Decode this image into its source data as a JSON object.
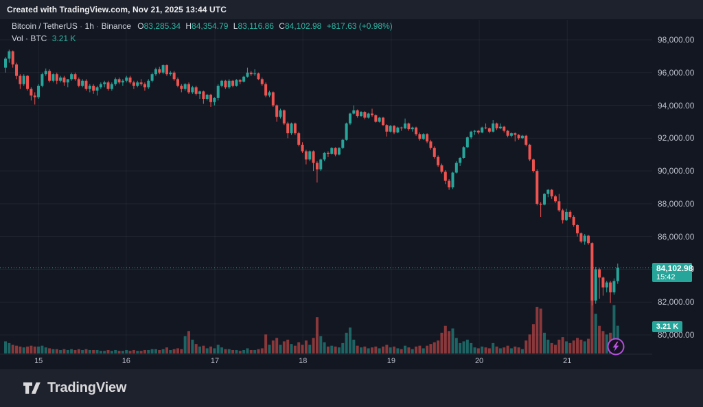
{
  "attribution_bar": {
    "text": "Created with TradingView.com, Nov 21, 2025 13:44 UTC"
  },
  "header": {
    "symbol": "Bitcoin / TetherUS",
    "sep1": "·",
    "interval": "1h",
    "sep2": "·",
    "exchange": "Binance",
    "o_prefix": "O",
    "o_value": "83,285.34",
    "h_prefix": "H",
    "h_value": "84,354.79",
    "l_prefix": "L",
    "l_value": "83,116.86",
    "c_prefix": "C",
    "c_value": "84,102.98",
    "change": "+817.63 (+0.98%)",
    "volume_label": "Vol · BTC",
    "volume_value": "3.21 K"
  },
  "price_label": {
    "price": "84,102.98",
    "countdown": "15:42"
  },
  "volume_badge": {
    "value": "3.21 K"
  },
  "footer": {
    "brand": "TradingView"
  },
  "colors": {
    "background": "#131722",
    "panel": "#1e222d",
    "up": "#26a69a",
    "down": "#ef5350",
    "grid": "rgba(255,255,255,0.055)",
    "axis_text": "#b9bdc9",
    "price_line": "#26a69a",
    "bolt_ring": "#b04fd8",
    "bolt_top": "#e649dd",
    "bolt_bottom": "#8b5cf6"
  },
  "chart_data": {
    "type": "candlestick+volume",
    "title": "Bitcoin / TetherUS · 1h · Binance",
    "price_axis": {
      "ticks": [
        {
          "label": "98,000.00",
          "value": 98000
        },
        {
          "label": "96,000.00",
          "value": 96000
        },
        {
          "label": "94,000.00",
          "value": 94000
        },
        {
          "label": "92,000.00",
          "value": 92000
        },
        {
          "label": "90,000.00",
          "value": 90000
        },
        {
          "label": "88,000.00",
          "value": 88000
        },
        {
          "label": "86,000.00",
          "value": 86000
        },
        {
          "label": "84,000.00",
          "value": 84000
        },
        {
          "label": "82,000.00",
          "value": 82000
        },
        {
          "label": "80,000.00",
          "value": 80000
        }
      ],
      "range": [
        80000,
        98000
      ]
    },
    "time_axis": {
      "ticks": [
        {
          "label": "15",
          "i": 9.4
        },
        {
          "label": "16",
          "i": 33.3
        },
        {
          "label": "17",
          "i": 57.5
        },
        {
          "label": "18",
          "i": 81.5
        },
        {
          "label": "19",
          "i": 105.6
        },
        {
          "label": "20",
          "i": 129.6
        },
        {
          "label": "21",
          "i": 153.6
        }
      ]
    },
    "current_price": 84102.98,
    "last_volume_k": 3.21,
    "units": "price values in thousands of USDT, volume in thousands of BTC",
    "candles_format": [
      "open",
      "high",
      "low",
      "close",
      "volume_k"
    ],
    "candles": [
      [
        96.3,
        96.95,
        96.0,
        96.85,
        1.4
      ],
      [
        96.85,
        97.4,
        96.6,
        97.3,
        1.2
      ],
      [
        97.3,
        97.35,
        96.3,
        96.5,
        1.0
      ],
      [
        96.5,
        96.6,
        95.6,
        95.8,
        0.9
      ],
      [
        95.8,
        95.9,
        95.0,
        95.3,
        0.8
      ],
      [
        95.3,
        95.9,
        95.2,
        95.8,
        0.7
      ],
      [
        95.8,
        95.85,
        94.9,
        95.0,
        0.8
      ],
      [
        95.0,
        95.1,
        94.3,
        94.6,
        0.9
      ],
      [
        94.6,
        94.8,
        94.05,
        94.5,
        0.8
      ],
      [
        94.5,
        95.3,
        94.4,
        95.2,
        0.8
      ],
      [
        95.2,
        96.0,
        95.1,
        95.9,
        0.9
      ],
      [
        95.9,
        96.25,
        95.8,
        96.1,
        0.7
      ],
      [
        96.1,
        96.2,
        95.4,
        95.5,
        0.6
      ],
      [
        95.5,
        95.95,
        95.4,
        95.9,
        0.5
      ],
      [
        95.9,
        96.0,
        95.3,
        95.5,
        0.5
      ],
      [
        95.5,
        95.8,
        95.4,
        95.7,
        0.4
      ],
      [
        95.7,
        95.8,
        95.2,
        95.4,
        0.5
      ],
      [
        95.4,
        95.6,
        95.1,
        95.6,
        0.4
      ],
      [
        95.6,
        96.0,
        95.5,
        95.9,
        0.5
      ],
      [
        95.9,
        96.0,
        95.5,
        95.6,
        0.4
      ],
      [
        95.6,
        95.7,
        95.1,
        95.2,
        0.5
      ],
      [
        95.2,
        95.6,
        95.1,
        95.5,
        0.4
      ],
      [
        95.5,
        95.6,
        94.9,
        95.0,
        0.5
      ],
      [
        95.0,
        95.3,
        94.8,
        95.2,
        0.4
      ],
      [
        95.2,
        95.3,
        94.7,
        94.9,
        0.4
      ],
      [
        94.9,
        95.2,
        94.6,
        95.1,
        0.4
      ],
      [
        95.1,
        95.4,
        95.0,
        95.3,
        0.3
      ],
      [
        95.3,
        95.5,
        95.1,
        95.4,
        0.3
      ],
      [
        95.4,
        95.5,
        94.9,
        95.0,
        0.4
      ],
      [
        95.0,
        95.4,
        94.9,
        95.3,
        0.3
      ],
      [
        95.3,
        95.7,
        95.2,
        95.6,
        0.4
      ],
      [
        95.6,
        95.7,
        95.3,
        95.4,
        0.3
      ],
      [
        95.4,
        95.6,
        95.2,
        95.5,
        0.3
      ],
      [
        95.5,
        95.8,
        95.4,
        95.7,
        0.4
      ],
      [
        95.7,
        95.8,
        95.3,
        95.4,
        0.3
      ],
      [
        95.4,
        95.5,
        95.0,
        95.2,
        0.4
      ],
      [
        95.2,
        95.5,
        95.1,
        95.4,
        0.3
      ],
      [
        95.4,
        95.6,
        95.2,
        95.3,
        0.3
      ],
      [
        95.3,
        95.4,
        94.9,
        95.1,
        0.4
      ],
      [
        95.1,
        95.6,
        95.0,
        95.5,
        0.4
      ],
      [
        95.5,
        96.0,
        95.4,
        95.9,
        0.5
      ],
      [
        95.9,
        96.3,
        95.8,
        96.2,
        0.5
      ],
      [
        96.2,
        96.35,
        95.9,
        96.0,
        0.4
      ],
      [
        96.0,
        96.5,
        95.9,
        96.45,
        0.5
      ],
      [
        96.45,
        96.5,
        95.8,
        95.9,
        0.7
      ],
      [
        95.9,
        96.1,
        95.8,
        96.0,
        0.4
      ],
      [
        96.0,
        96.1,
        95.5,
        95.6,
        0.5
      ],
      [
        95.6,
        95.7,
        95.1,
        95.2,
        0.6
      ],
      [
        95.2,
        95.3,
        94.8,
        95.0,
        0.5
      ],
      [
        95.0,
        95.35,
        94.9,
        95.3,
        2.0
      ],
      [
        95.3,
        95.4,
        94.7,
        94.8,
        2.6
      ],
      [
        94.8,
        95.2,
        94.7,
        95.1,
        1.6
      ],
      [
        95.1,
        95.2,
        94.6,
        94.7,
        1.1
      ],
      [
        94.7,
        94.9,
        94.4,
        94.85,
        0.8
      ],
      [
        94.85,
        94.9,
        94.1,
        94.4,
        0.9
      ],
      [
        94.4,
        94.7,
        94.3,
        94.65,
        0.6
      ],
      [
        94.65,
        94.7,
        93.9,
        94.2,
        0.8
      ],
      [
        94.2,
        94.5,
        94.0,
        94.45,
        0.6
      ],
      [
        94.45,
        95.3,
        94.3,
        95.2,
        1.0
      ],
      [
        95.2,
        95.55,
        95.1,
        95.5,
        0.7
      ],
      [
        95.5,
        95.55,
        95.0,
        95.1,
        0.5
      ],
      [
        95.1,
        95.6,
        95.0,
        95.5,
        0.5
      ],
      [
        95.5,
        95.55,
        95.1,
        95.2,
        0.4
      ],
      [
        95.2,
        95.6,
        95.15,
        95.55,
        0.4
      ],
      [
        95.55,
        95.6,
        95.3,
        95.45,
        0.3
      ],
      [
        95.45,
        95.8,
        95.4,
        95.75,
        0.4
      ],
      [
        95.75,
        96.3,
        95.7,
        96.0,
        0.6
      ],
      [
        96.0,
        96.1,
        95.8,
        95.9,
        0.4
      ],
      [
        95.9,
        96.2,
        95.8,
        95.95,
        0.4
      ],
      [
        95.95,
        96.0,
        95.55,
        95.6,
        0.5
      ],
      [
        95.6,
        95.7,
        95.2,
        95.3,
        0.6
      ],
      [
        95.3,
        95.4,
        94.5,
        94.6,
        2.2
      ],
      [
        94.6,
        94.9,
        94.5,
        94.8,
        1.0
      ],
      [
        94.8,
        94.85,
        93.9,
        94.0,
        1.5
      ],
      [
        94.0,
        94.05,
        93.0,
        93.3,
        1.8
      ],
      [
        93.3,
        93.8,
        93.2,
        93.7,
        1.0
      ],
      [
        93.7,
        93.75,
        92.8,
        92.9,
        1.4
      ],
      [
        92.9,
        93.0,
        92.0,
        92.3,
        1.6
      ],
      [
        92.3,
        92.95,
        92.2,
        92.9,
        1.1
      ],
      [
        92.9,
        92.95,
        92.2,
        92.3,
        0.9
      ],
      [
        92.3,
        92.4,
        91.5,
        91.6,
        1.3
      ],
      [
        91.6,
        91.75,
        91.1,
        91.2,
        1.0
      ],
      [
        91.2,
        91.3,
        90.4,
        90.7,
        1.5
      ],
      [
        90.7,
        91.25,
        90.6,
        91.2,
        1.0
      ],
      [
        91.2,
        91.25,
        90.0,
        90.5,
        1.8
      ],
      [
        90.5,
        90.6,
        89.3,
        90.1,
        4.2
      ],
      [
        90.1,
        90.75,
        90.0,
        90.7,
        2.0
      ],
      [
        90.7,
        91.15,
        90.6,
        91.1,
        1.3
      ],
      [
        91.1,
        91.2,
        90.85,
        91.05,
        0.8
      ],
      [
        91.05,
        91.45,
        91.0,
        91.4,
        0.9
      ],
      [
        91.4,
        91.45,
        90.9,
        91.0,
        0.8
      ],
      [
        91.0,
        91.45,
        90.95,
        91.4,
        0.7
      ],
      [
        91.4,
        91.95,
        91.35,
        91.9,
        1.2
      ],
      [
        91.9,
        92.95,
        91.85,
        92.9,
        2.4
      ],
      [
        92.9,
        93.55,
        92.8,
        93.5,
        3.0
      ],
      [
        93.5,
        94.0,
        93.45,
        93.7,
        1.6
      ],
      [
        93.7,
        93.75,
        93.25,
        93.35,
        0.9
      ],
      [
        93.35,
        93.65,
        93.3,
        93.6,
        0.7
      ],
      [
        93.6,
        93.65,
        93.15,
        93.25,
        0.8
      ],
      [
        93.25,
        93.55,
        93.2,
        93.5,
        0.6
      ],
      [
        93.5,
        93.8,
        93.3,
        93.4,
        0.7
      ],
      [
        93.4,
        93.45,
        92.95,
        93.0,
        0.8
      ],
      [
        93.0,
        93.3,
        92.95,
        93.25,
        0.6
      ],
      [
        93.25,
        93.3,
        92.75,
        92.8,
        0.8
      ],
      [
        92.8,
        92.85,
        92.1,
        92.4,
        1.0
      ],
      [
        92.4,
        92.8,
        92.35,
        92.75,
        0.7
      ],
      [
        92.75,
        92.8,
        92.25,
        92.35,
        0.8
      ],
      [
        92.35,
        92.7,
        92.3,
        92.65,
        0.6
      ],
      [
        92.65,
        92.7,
        92.45,
        92.6,
        0.5
      ],
      [
        92.6,
        93.2,
        92.55,
        92.9,
        0.9
      ],
      [
        92.9,
        92.95,
        92.45,
        92.55,
        0.7
      ],
      [
        92.55,
        92.7,
        92.4,
        92.65,
        0.5
      ],
      [
        92.65,
        92.7,
        92.15,
        92.25,
        0.8
      ],
      [
        92.25,
        92.35,
        91.85,
        91.95,
        0.9
      ],
      [
        91.95,
        92.3,
        91.9,
        92.25,
        0.6
      ],
      [
        92.25,
        92.3,
        91.7,
        91.8,
        0.9
      ],
      [
        91.8,
        91.9,
        91.3,
        91.4,
        1.1
      ],
      [
        91.4,
        91.5,
        90.75,
        90.85,
        1.3
      ],
      [
        90.85,
        90.95,
        90.25,
        90.35,
        1.5
      ],
      [
        90.35,
        90.45,
        89.85,
        89.95,
        2.4
      ],
      [
        89.95,
        90.05,
        89.2,
        89.4,
        3.2
      ],
      [
        89.4,
        89.5,
        88.85,
        89.0,
        2.6
      ],
      [
        89.0,
        89.95,
        88.9,
        89.9,
        2.9
      ],
      [
        89.9,
        90.6,
        89.85,
        90.5,
        1.8
      ],
      [
        90.5,
        90.85,
        90.3,
        90.8,
        1.2
      ],
      [
        90.8,
        91.5,
        90.75,
        91.45,
        1.4
      ],
      [
        91.45,
        92.1,
        91.4,
        92.05,
        1.6
      ],
      [
        92.05,
        92.45,
        91.95,
        92.4,
        1.2
      ],
      [
        92.4,
        92.5,
        92.2,
        92.45,
        0.7
      ],
      [
        92.45,
        92.5,
        92.25,
        92.35,
        0.6
      ],
      [
        92.35,
        92.7,
        92.3,
        92.65,
        0.8
      ],
      [
        92.65,
        92.9,
        92.55,
        92.6,
        0.7
      ],
      [
        92.6,
        92.65,
        92.3,
        92.4,
        0.6
      ],
      [
        92.4,
        93.1,
        92.35,
        92.9,
        1.2
      ],
      [
        92.9,
        92.95,
        92.5,
        92.6,
        0.8
      ],
      [
        92.6,
        92.9,
        92.55,
        92.7,
        0.6
      ],
      [
        92.7,
        92.75,
        92.35,
        92.45,
        0.7
      ],
      [
        92.45,
        92.5,
        92.05,
        92.15,
        0.9
      ],
      [
        92.15,
        92.35,
        92.05,
        92.3,
        0.6
      ],
      [
        92.3,
        92.35,
        91.8,
        92.2,
        0.8
      ],
      [
        92.2,
        92.25,
        91.9,
        92.0,
        0.7
      ],
      [
        92.0,
        92.2,
        91.95,
        92.15,
        0.5
      ],
      [
        92.15,
        92.2,
        91.5,
        91.6,
        1.5
      ],
      [
        91.6,
        91.65,
        90.6,
        90.7,
        2.2
      ],
      [
        90.7,
        90.75,
        89.9,
        90.0,
        3.4
      ],
      [
        90.0,
        90.1,
        87.9,
        88.0,
        5.4
      ],
      [
        88.0,
        88.1,
        87.2,
        87.95,
        5.2
      ],
      [
        87.95,
        88.65,
        87.9,
        88.6,
        2.4
      ],
      [
        88.6,
        88.9,
        88.4,
        88.85,
        1.6
      ],
      [
        88.85,
        88.9,
        88.3,
        88.45,
        1.2
      ],
      [
        88.45,
        88.55,
        88.05,
        88.15,
        1.0
      ],
      [
        88.15,
        88.6,
        87.5,
        87.6,
        1.6
      ],
      [
        87.6,
        87.7,
        86.8,
        87.0,
        1.9
      ],
      [
        87.0,
        87.7,
        86.95,
        87.5,
        1.4
      ],
      [
        87.5,
        87.6,
        87.1,
        87.2,
        1.2
      ],
      [
        87.2,
        87.3,
        86.6,
        86.7,
        1.5
      ],
      [
        86.7,
        86.75,
        86.0,
        86.2,
        1.8
      ],
      [
        86.2,
        86.25,
        85.6,
        85.7,
        1.6
      ],
      [
        85.7,
        86.15,
        85.5,
        86.05,
        1.4
      ],
      [
        86.05,
        86.1,
        85.5,
        85.6,
        1.7
      ],
      [
        85.6,
        85.65,
        81.8,
        82.1,
        6.2
      ],
      [
        82.1,
        84.15,
        81.9,
        84.0,
        4.6
      ],
      [
        84.0,
        84.1,
        82.2,
        83.5,
        3.2
      ],
      [
        83.5,
        83.55,
        82.4,
        82.9,
        2.6
      ],
      [
        82.9,
        83.3,
        82.6,
        83.2,
        2.2
      ],
      [
        83.2,
        83.3,
        81.95,
        82.6,
        2.4
      ],
      [
        82.6,
        83.45,
        82.45,
        83.29,
        5.6
      ],
      [
        83.285,
        84.355,
        83.117,
        84.103,
        3.21
      ]
    ]
  }
}
